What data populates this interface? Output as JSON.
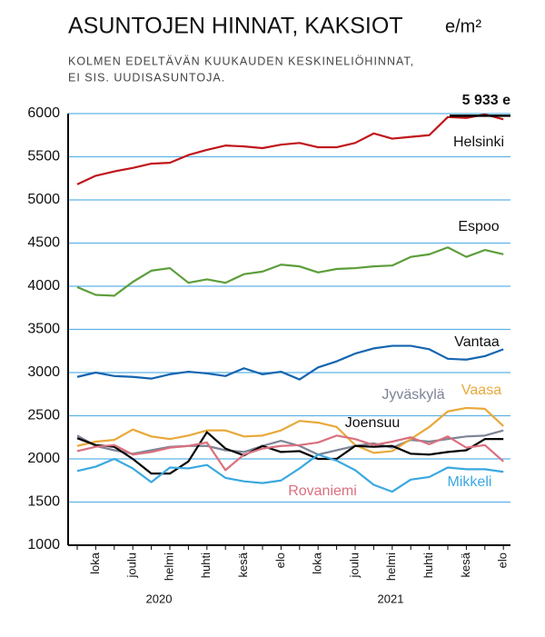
{
  "chart_data": {
    "type": "line",
    "title": "ASUNTOJEN HINNAT, KAKSIOT",
    "title_unit": "e/m²",
    "subtitle": [
      "KOLMEN EDELTÄVÄN KUUKAUDEN KESKINELIÖHINNAT,",
      "EI SIS. UUDISASUNTOJA."
    ],
    "categories": [
      null,
      "loka",
      null,
      "joulu",
      null,
      "helmi",
      null,
      "huhti",
      null,
      "kesä",
      null,
      "elo",
      null,
      "loka",
      null,
      "joulu",
      null,
      "helmi",
      null,
      "huhti",
      null,
      "kesä",
      null,
      "elo"
    ],
    "years": [
      "2020",
      "2021"
    ],
    "ylim": [
      1000,
      6000
    ],
    "yticks": [
      1000,
      1500,
      2000,
      2500,
      3000,
      3500,
      4000,
      4500,
      5000,
      5500,
      6000
    ],
    "grid": true,
    "series": [
      {
        "name": "Helsinki",
        "color": "#c0151b",
        "values": [
          5180,
          5280,
          5330,
          5370,
          5420,
          5430,
          5520,
          5580,
          5630,
          5620,
          5600,
          5640,
          5660,
          5610,
          5610,
          5660,
          5770,
          5710,
          5730,
          5750,
          5960,
          5950,
          5990,
          5933
        ],
        "value_labels": [
          null,
          null,
          null,
          null,
          null,
          null,
          null,
          null,
          null,
          null,
          null,
          null,
          null,
          null,
          null,
          null,
          null,
          null,
          null,
          null,
          null,
          null,
          null,
          "5 933 e"
        ]
      },
      {
        "name": "Espoo",
        "color": "#5c9e3a",
        "values": [
          3990,
          3900,
          3890,
          4050,
          4180,
          4210,
          4040,
          4080,
          4040,
          4140,
          4170,
          4250,
          4230,
          4160,
          4200,
          4210,
          4230,
          4240,
          4340,
          4370,
          4450,
          4340,
          4420,
          4370
        ]
      },
      {
        "name": "Vantaa",
        "color": "#1565b0",
        "values": [
          2950,
          3000,
          2960,
          2950,
          2930,
          2980,
          3010,
          2990,
          2960,
          3050,
          2980,
          3010,
          2920,
          3060,
          3130,
          3220,
          3280,
          3310,
          3310,
          3270,
          3160,
          3150,
          3190,
          3270
        ]
      },
      {
        "name": "Jyväskylä",
        "color": "#7d8496",
        "values": [
          2270,
          2150,
          2100,
          2060,
          2100,
          2140,
          2150,
          2150,
          2100,
          2080,
          2150,
          2210,
          2150,
          2050,
          2100,
          2150,
          2180,
          2130,
          2220,
          2200,
          2230,
          2260,
          2270,
          2330
        ]
      },
      {
        "name": "Vaasa",
        "color": "#e8a93a",
        "values": [
          2150,
          2200,
          2220,
          2340,
          2260,
          2230,
          2270,
          2330,
          2330,
          2260,
          2270,
          2330,
          2440,
          2420,
          2370,
          2160,
          2070,
          2090,
          2230,
          2370,
          2550,
          2590,
          2580,
          2380
        ]
      },
      {
        "name": "Joensuu",
        "color": "#000000",
        "values": [
          2240,
          2160,
          2140,
          2000,
          1830,
          1830,
          1970,
          2310,
          2120,
          2040,
          2150,
          2080,
          2090,
          2000,
          2000,
          2150,
          2140,
          2150,
          2060,
          2050,
          2080,
          2100,
          2230,
          2230
        ]
      },
      {
        "name": "Rovaniemi",
        "color": "#d9707e",
        "values": [
          2090,
          2140,
          2160,
          2050,
          2080,
          2130,
          2150,
          2190,
          1870,
          2050,
          2120,
          2150,
          2160,
          2190,
          2270,
          2230,
          2160,
          2200,
          2250,
          2170,
          2260,
          2130,
          2160,
          1970
        ]
      },
      {
        "name": "Mikkeli",
        "color": "#3aa8df",
        "values": [
          1860,
          1910,
          2000,
          1890,
          1730,
          1900,
          1890,
          1930,
          1780,
          1740,
          1720,
          1750,
          1890,
          2050,
          1980,
          1870,
          1700,
          1620,
          1760,
          1790,
          1900,
          1880,
          1880,
          1850
        ]
      }
    ]
  }
}
